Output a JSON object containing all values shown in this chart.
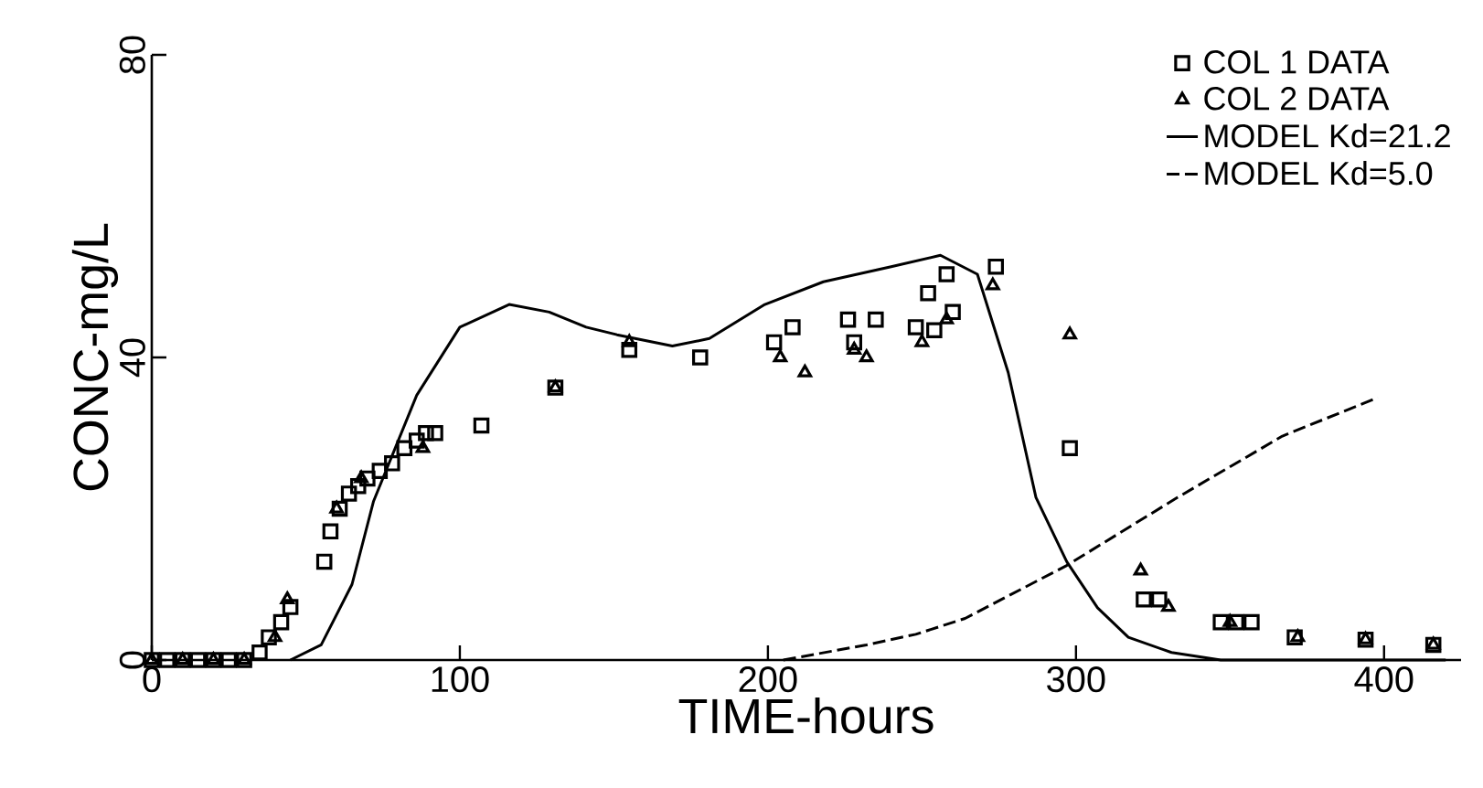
{
  "chart_data": {
    "type": "scatter",
    "xlabel": "TIME-hours",
    "ylabel": "CONC-mg/L",
    "xlim": [
      0,
      425
    ],
    "ylim": [
      0,
      80
    ],
    "xticks": [
      0,
      100,
      200,
      300,
      400
    ],
    "yticks": [
      0,
      40,
      80
    ],
    "grid": false,
    "legend": "top right",
    "series": [
      {
        "name": "COL 1 DATA",
        "marker": "square",
        "color": "#000000",
        "x": [
          0,
          5,
          10,
          15,
          20,
          25,
          30,
          35,
          38,
          42,
          45,
          56,
          58,
          61,
          64,
          67,
          70,
          74,
          78,
          82,
          86,
          89,
          92,
          107,
          131,
          155,
          178,
          202,
          208,
          226,
          228,
          235,
          248,
          252,
          254,
          258,
          260,
          274,
          298,
          322,
          327,
          347,
          352,
          357,
          371,
          394,
          416
        ],
        "values": [
          0,
          0,
          0,
          0,
          0,
          0,
          0,
          1,
          3,
          5,
          7,
          13,
          17,
          20,
          22,
          23,
          24,
          25,
          26,
          28,
          29,
          30,
          30,
          31,
          36,
          41,
          40,
          42,
          44,
          45,
          42,
          45,
          44,
          48.5,
          43.6,
          51,
          46,
          52,
          28,
          8,
          8,
          5,
          5,
          5,
          3,
          2.7,
          2
        ]
      },
      {
        "name": "COL 2 DATA",
        "marker": "triangle",
        "color": "#000000",
        "x": [
          0,
          10,
          20,
          30,
          40,
          44,
          60,
          68,
          88,
          131,
          155,
          204,
          212,
          228,
          232,
          250,
          258,
          273,
          298,
          321,
          330,
          350,
          372,
          394,
          416
        ],
        "values": [
          0,
          0,
          0,
          0,
          3,
          8,
          20,
          24,
          28,
          36,
          42,
          40,
          38,
          41,
          40,
          42,
          45,
          49.5,
          43,
          11.8,
          7,
          5,
          3,
          2.7,
          2
        ]
      },
      {
        "name": "MODEL Kd=21.2",
        "type": "line",
        "line_style": "solid",
        "marker": "none",
        "color": "#000000",
        "x": [
          45,
          55,
          65,
          72,
          86,
          100,
          116,
          129,
          141,
          151,
          169,
          181,
          199,
          218,
          240,
          256,
          268,
          278,
          287,
          297,
          307,
          317,
          331,
          347,
          380,
          420
        ],
        "values": [
          0,
          2,
          10,
          21,
          35,
          44,
          47,
          46,
          44,
          43,
          41.5,
          42.5,
          47,
          50,
          52,
          53.5,
          51,
          38,
          21.5,
          13,
          6.9,
          3,
          1,
          0,
          0,
          0
        ]
      },
      {
        "name": "MODEL Kd=5.0",
        "type": "line",
        "line_style": "dashed",
        "marker": "none",
        "color": "#000000",
        "x": [
          205,
          232,
          248,
          264,
          297,
          333,
          367,
          398
        ],
        "values": [
          0,
          2,
          3.4,
          5.5,
          12.5,
          21.5,
          29.6,
          34.7
        ]
      }
    ]
  }
}
